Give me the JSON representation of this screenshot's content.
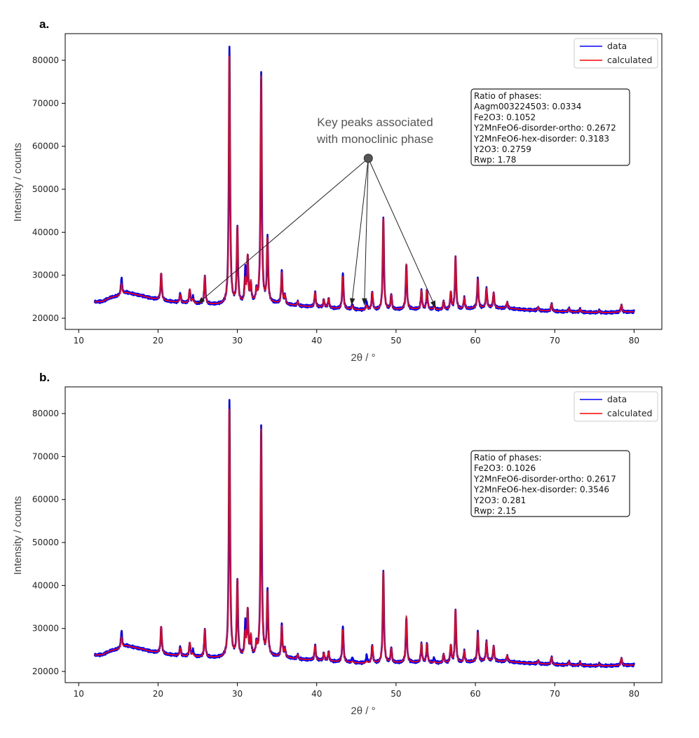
{
  "chart_data": [
    {
      "panel_label": "a.",
      "type": "line",
      "xlabel": "2θ / °",
      "ylabel": "Intensity / counts",
      "xlim": [
        8.3,
        83.5
      ],
      "ylim": [
        17400,
        86200
      ],
      "x_ticks": [
        10,
        20,
        30,
        40,
        50,
        60,
        70,
        80
      ],
      "y_ticks": [
        20000,
        30000,
        40000,
        50000,
        60000,
        70000,
        80000
      ],
      "legend": {
        "placement": "top-right",
        "entries": [
          "data",
          "calculated"
        ]
      },
      "series": [
        {
          "name": "data",
          "color": "#0000ff"
        },
        {
          "name": "calculated",
          "color": "#ff0000"
        }
      ],
      "baseline_x": [
        12,
        13,
        14,
        15,
        16,
        17,
        18,
        19,
        20,
        21,
        22,
        23,
        24,
        25,
        26,
        27,
        28,
        30,
        32,
        34,
        36,
        38,
        40,
        42,
        44,
        46,
        48,
        50,
        52,
        54,
        56,
        58,
        60,
        62,
        64,
        66,
        68,
        70,
        72,
        74,
        76,
        78,
        80
      ],
      "baseline_y": [
        23800,
        23900,
        24800,
        25200,
        26000,
        25600,
        25200,
        24700,
        24400,
        24000,
        23800,
        23600,
        23500,
        23400,
        23300,
        23200,
        23200,
        23300,
        23500,
        23600,
        23200,
        22800,
        22600,
        22300,
        22100,
        21900,
        21900,
        22000,
        22100,
        22000,
        21900,
        22000,
        22300,
        22400,
        22300,
        22000,
        21800,
        21600,
        21500,
        21400,
        21300,
        21400,
        21500
      ],
      "peaks": [
        {
          "x": 15.4,
          "height": 4000,
          "calc": 2500
        },
        {
          "x": 20.4,
          "height": 6200,
          "calc": 6200
        },
        {
          "x": 22.8,
          "height": 2200,
          "calc": 1800
        },
        {
          "x": 24.0,
          "height": 3200,
          "calc": 3200
        },
        {
          "x": 24.4,
          "height": 1500,
          "calc": 900
        },
        {
          "x": 25.9,
          "height": 6500,
          "calc": 6500
        },
        {
          "x": 29.0,
          "height": 59400,
          "calc": 57500
        },
        {
          "x": 30.0,
          "height": 17500,
          "calc": 17500
        },
        {
          "x": 31.0,
          "height": 7500,
          "calc": 5000
        },
        {
          "x": 31.3,
          "height": 10500,
          "calc": 10500
        },
        {
          "x": 31.7,
          "height": 4000,
          "calc": 4500
        },
        {
          "x": 32.4,
          "height": 2600,
          "calc": 2600
        },
        {
          "x": 33.0,
          "height": 53500,
          "calc": 52500
        },
        {
          "x": 33.8,
          "height": 15000,
          "calc": 14500
        },
        {
          "x": 35.6,
          "height": 7600,
          "calc": 7200
        },
        {
          "x": 36.0,
          "height": 2000,
          "calc": 2000
        },
        {
          "x": 37.6,
          "height": 1000,
          "calc": 1000
        },
        {
          "x": 39.8,
          "height": 3600,
          "calc": 3400
        },
        {
          "x": 40.9,
          "height": 1800,
          "calc": 1800
        },
        {
          "x": 41.5,
          "height": 2200,
          "calc": 2200
        },
        {
          "x": 43.3,
          "height": 8500,
          "calc": 7500
        },
        {
          "x": 44.5,
          "height": 1200,
          "calc": 800
        },
        {
          "x": 46.3,
          "height": 1800,
          "calc": 1000
        },
        {
          "x": 47.0,
          "height": 4200,
          "calc": 4000
        },
        {
          "x": 48.4,
          "height": 21500,
          "calc": 21200
        },
        {
          "x": 49.4,
          "height": 3600,
          "calc": 3300
        },
        {
          "x": 51.3,
          "height": 10500,
          "calc": 10500
        },
        {
          "x": 53.2,
          "height": 4400,
          "calc": 4400
        },
        {
          "x": 53.9,
          "height": 4400,
          "calc": 4300
        },
        {
          "x": 54.8,
          "height": 1200,
          "calc": 800
        },
        {
          "x": 56.0,
          "height": 2100,
          "calc": 2000
        },
        {
          "x": 56.9,
          "height": 4000,
          "calc": 4000
        },
        {
          "x": 57.5,
          "height": 12200,
          "calc": 12200
        },
        {
          "x": 58.6,
          "height": 2700,
          "calc": 2700
        },
        {
          "x": 60.3,
          "height": 7000,
          "calc": 6800
        },
        {
          "x": 61.4,
          "height": 4700,
          "calc": 4600
        },
        {
          "x": 62.3,
          "height": 3600,
          "calc": 3500
        },
        {
          "x": 64.0,
          "height": 1400,
          "calc": 1400
        },
        {
          "x": 67.9,
          "height": 800,
          "calc": 800
        },
        {
          "x": 69.6,
          "height": 1800,
          "calc": 1700
        },
        {
          "x": 71.8,
          "height": 800,
          "calc": 700
        },
        {
          "x": 73.2,
          "height": 700,
          "calc": 700
        },
        {
          "x": 75.6,
          "height": 500,
          "calc": 500
        },
        {
          "x": 78.4,
          "height": 1700,
          "calc": 1700
        }
      ],
      "info_box": {
        "placement": "upper-right",
        "lines": [
          "Ratio of phases:",
          "Aagm003224503: 0.0334",
          "Fe2O3: 0.1052",
          "Y2MnFeO6-disorder-ortho: 0.2672",
          "Y2MnFeO6-hex-disorder: 0.3183",
          "Y2O3: 0.2759",
          "Rwp: 1.78"
        ]
      },
      "annotation": {
        "text_lines": [
          "Key peaks associated",
          "with monoclinic phase"
        ],
        "origin": [
          46.5,
          57200
        ],
        "targets": [
          [
            25.0,
            23400
          ],
          [
            44.4,
            23000
          ],
          [
            46.0,
            23000
          ],
          [
            55.0,
            22400
          ]
        ]
      }
    },
    {
      "panel_label": "b.",
      "type": "line",
      "xlabel": "2θ / °",
      "ylabel": "Intensity / counts",
      "xlim": [
        8.3,
        83.5
      ],
      "ylim": [
        17400,
        86200
      ],
      "x_ticks": [
        10,
        20,
        30,
        40,
        50,
        60,
        70,
        80
      ],
      "y_ticks": [
        20000,
        30000,
        40000,
        50000,
        60000,
        70000,
        80000
      ],
      "legend": {
        "placement": "top-right",
        "entries": [
          "data",
          "calculated"
        ]
      },
      "series": [
        {
          "name": "data",
          "color": "#0000ff"
        },
        {
          "name": "calculated",
          "color": "#ff0000"
        }
      ],
      "baseline_x": [
        12,
        13,
        14,
        15,
        16,
        17,
        18,
        19,
        20,
        21,
        22,
        23,
        24,
        25,
        26,
        27,
        28,
        30,
        32,
        34,
        36,
        38,
        40,
        42,
        44,
        46,
        48,
        50,
        52,
        54,
        56,
        58,
        60,
        62,
        64,
        66,
        68,
        70,
        72,
        74,
        76,
        78,
        80
      ],
      "baseline_y": [
        23800,
        23900,
        24800,
        25200,
        26000,
        25600,
        25200,
        24700,
        24400,
        24000,
        23800,
        23600,
        23500,
        23400,
        23300,
        23200,
        23200,
        23300,
        23500,
        23600,
        23200,
        22800,
        22600,
        22300,
        22100,
        21900,
        21900,
        22000,
        22100,
        22000,
        21900,
        22000,
        22300,
        22400,
        22300,
        22000,
        21800,
        21600,
        21500,
        21400,
        21300,
        21400,
        21500
      ],
      "peaks": [
        {
          "x": 15.4,
          "height": 4000,
          "calc": 2500
        },
        {
          "x": 20.4,
          "height": 6200,
          "calc": 6200
        },
        {
          "x": 22.8,
          "height": 2200,
          "calc": 1800
        },
        {
          "x": 24.0,
          "height": 3200,
          "calc": 3200
        },
        {
          "x": 24.4,
          "height": 1500,
          "calc": 600
        },
        {
          "x": 25.9,
          "height": 6500,
          "calc": 6500
        },
        {
          "x": 29.0,
          "height": 59400,
          "calc": 57500
        },
        {
          "x": 30.0,
          "height": 17500,
          "calc": 17500
        },
        {
          "x": 31.0,
          "height": 7500,
          "calc": 5000
        },
        {
          "x": 31.3,
          "height": 10500,
          "calc": 10500
        },
        {
          "x": 31.7,
          "height": 4000,
          "calc": 4500
        },
        {
          "x": 32.4,
          "height": 2600,
          "calc": 2600
        },
        {
          "x": 33.0,
          "height": 53500,
          "calc": 52500
        },
        {
          "x": 33.8,
          "height": 15000,
          "calc": 14500
        },
        {
          "x": 35.6,
          "height": 7600,
          "calc": 7200
        },
        {
          "x": 36.0,
          "height": 2000,
          "calc": 2000
        },
        {
          "x": 37.6,
          "height": 1000,
          "calc": 1000
        },
        {
          "x": 39.8,
          "height": 3600,
          "calc": 3400
        },
        {
          "x": 40.9,
          "height": 1800,
          "calc": 1800
        },
        {
          "x": 41.5,
          "height": 2200,
          "calc": 2200
        },
        {
          "x": 43.3,
          "height": 8500,
          "calc": 7500
        },
        {
          "x": 44.5,
          "height": 1200,
          "calc": 300
        },
        {
          "x": 46.3,
          "height": 1800,
          "calc": 400
        },
        {
          "x": 47.0,
          "height": 4200,
          "calc": 4000
        },
        {
          "x": 48.4,
          "height": 21500,
          "calc": 21200
        },
        {
          "x": 49.4,
          "height": 3600,
          "calc": 3300
        },
        {
          "x": 51.3,
          "height": 10500,
          "calc": 10800
        },
        {
          "x": 53.2,
          "height": 4400,
          "calc": 4400
        },
        {
          "x": 53.9,
          "height": 4400,
          "calc": 4300
        },
        {
          "x": 54.8,
          "height": 1200,
          "calc": 300
        },
        {
          "x": 56.0,
          "height": 2100,
          "calc": 2000
        },
        {
          "x": 56.9,
          "height": 4000,
          "calc": 4000
        },
        {
          "x": 57.5,
          "height": 12200,
          "calc": 12200
        },
        {
          "x": 58.6,
          "height": 2700,
          "calc": 2700
        },
        {
          "x": 60.3,
          "height": 7000,
          "calc": 6800
        },
        {
          "x": 61.4,
          "height": 4700,
          "calc": 4600
        },
        {
          "x": 62.3,
          "height": 3600,
          "calc": 3500
        },
        {
          "x": 64.0,
          "height": 1400,
          "calc": 1400
        },
        {
          "x": 67.9,
          "height": 800,
          "calc": 800
        },
        {
          "x": 69.6,
          "height": 1800,
          "calc": 1700
        },
        {
          "x": 71.8,
          "height": 800,
          "calc": 700
        },
        {
          "x": 73.2,
          "height": 700,
          "calc": 700
        },
        {
          "x": 75.6,
          "height": 500,
          "calc": 500
        },
        {
          "x": 78.4,
          "height": 1700,
          "calc": 1700
        }
      ],
      "info_box": {
        "placement": "upper-right",
        "lines": [
          "Ratio of phases:",
          "Fe2O3: 0.1026",
          "Y2MnFeO6-disorder-ortho: 0.2617",
          "Y2MnFeO6-hex-disorder: 0.3546",
          "Y2O3: 0.281",
          "Rwp: 2.15"
        ]
      }
    }
  ]
}
